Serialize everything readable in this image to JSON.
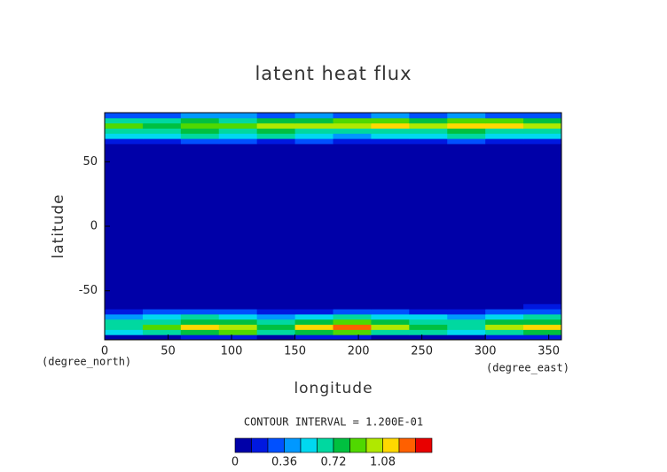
{
  "chart_data": {
    "type": "contour",
    "title": "latent heat flux",
    "x_label": "longitude",
    "y_label": "latitude",
    "x_unit_label": "(degree_east)",
    "y_unit_label": "(degree_north)",
    "contour_interval_label": "CONTOUR INTERVAL = 1.200E-01",
    "xlim": [
      0,
      360
    ],
    "ylim": [
      -88,
      88
    ],
    "xticks": [
      0,
      50,
      100,
      150,
      200,
      250,
      300,
      350
    ],
    "yticks": [
      -50,
      0,
      50
    ],
    "x_edges": [
      0,
      30,
      60,
      90,
      120,
      150,
      180,
      210,
      240,
      270,
      300,
      330,
      360
    ],
    "y_edges": [
      -88,
      -84,
      -80,
      -76,
      -72,
      -68,
      -64,
      -60,
      60,
      64,
      68,
      72,
      76,
      80,
      84,
      88
    ],
    "z": [
      [
        0.1,
        0.1,
        0.2,
        0.2,
        0.1,
        0.2,
        0.2,
        0.1,
        0.1,
        0.1,
        0.2,
        0.2
      ],
      [
        0.5,
        0.6,
        0.8,
        0.9,
        0.6,
        0.8,
        0.9,
        0.7,
        0.6,
        0.5,
        0.7,
        0.8
      ],
      [
        0.7,
        0.9,
        1.1,
        1.0,
        0.8,
        1.1,
        1.2,
        1.0,
        0.8,
        0.7,
        1.0,
        1.1
      ],
      [
        0.6,
        0.7,
        0.8,
        0.8,
        0.6,
        0.8,
        0.9,
        0.8,
        0.7,
        0.6,
        0.8,
        0.8
      ],
      [
        0.4,
        0.5,
        0.6,
        0.5,
        0.4,
        0.5,
        0.6,
        0.5,
        0.5,
        0.4,
        0.5,
        0.6
      ],
      [
        0.2,
        0.3,
        0.3,
        0.3,
        0.2,
        0.2,
        0.3,
        0.3,
        0.2,
        0.2,
        0.3,
        0.3
      ],
      [
        0.1,
        0.1,
        0.1,
        0.1,
        0,
        0.1,
        0.1,
        0.1,
        0,
        0.1,
        0.1,
        0.2
      ],
      [
        0,
        0,
        0,
        0,
        0,
        0,
        0,
        0,
        0,
        0,
        0,
        0
      ],
      [
        0,
        0.1,
        0,
        0.1,
        0.1,
        0,
        0.1,
        0.1,
        0,
        0,
        0.1,
        0
      ],
      [
        0.2,
        0.2,
        0.3,
        0.3,
        0.2,
        0.3,
        0.2,
        0.2,
        0.2,
        0.3,
        0.2,
        0.2
      ],
      [
        0.5,
        0.5,
        0.6,
        0.5,
        0.6,
        0.5,
        0.4,
        0.5,
        0.5,
        0.6,
        0.5,
        0.5
      ],
      [
        0.7,
        0.6,
        0.8,
        0.7,
        0.8,
        0.7,
        0.6,
        0.7,
        0.7,
        0.8,
        0.7,
        0.7
      ],
      [
        0.9,
        0.8,
        0.9,
        0.9,
        1.0,
        1.0,
        1.0,
        1.1,
        1.0,
        1.1,
        1.1,
        1.0
      ],
      [
        0.7,
        0.7,
        0.8,
        0.7,
        0.8,
        0.8,
        0.9,
        0.9,
        0.8,
        0.9,
        0.9,
        0.8
      ],
      [
        0.3,
        0.3,
        0.4,
        0.4,
        0.3,
        0.4,
        0.3,
        0.4,
        0.3,
        0.4,
        0.3,
        0.3
      ]
    ],
    "levels": [
      0,
      0.12,
      0.24,
      0.36,
      0.48,
      0.6,
      0.72,
      0.84,
      0.96,
      1.08,
      1.2,
      1.32,
      1.44
    ],
    "colors": [
      "#0000a8",
      "#0018e0",
      "#0050ff",
      "#0098ff",
      "#00d8f0",
      "#00d8a0",
      "#00c040",
      "#50d800",
      "#b0e800",
      "#ffd800",
      "#ff6000",
      "#e80000"
    ],
    "colorbar_ticks": [
      0,
      0.36,
      0.72,
      1.08
    ]
  }
}
